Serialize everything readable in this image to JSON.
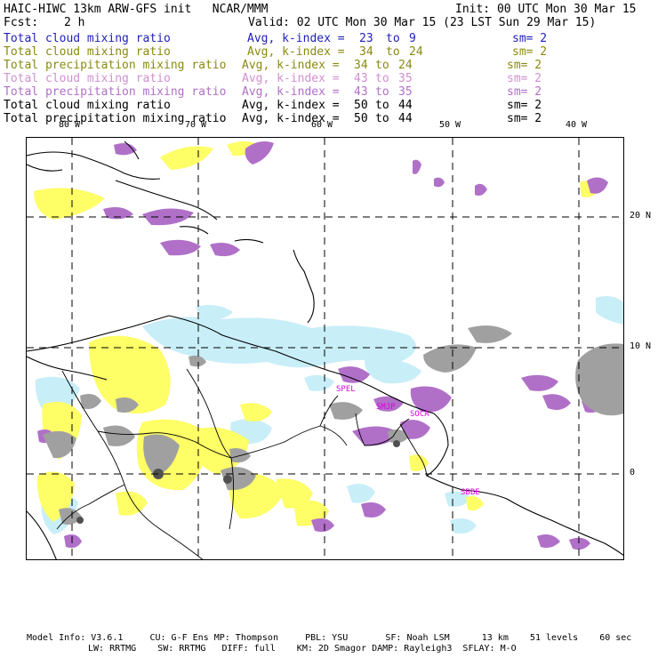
{
  "header": {
    "model_title": "HAIC-HIWC 13km ARW-GFS init   NCAR/MMM",
    "init": "Init: 00 UTC Mon 30 Mar 15",
    "fcst_label": "Fcst:",
    "fcst_value": "2 h",
    "valid": "Valid: 02 UTC Mon 30 Mar 15 (23 LST Sun 29 Mar 15)"
  },
  "fields": [
    {
      "name": "Total cloud mixing ratio",
      "avg": "Avg, k-index =",
      "k_from": "23",
      "to": "to",
      "k_to": "9",
      "sm": "sm= 2",
      "color": "#1f1fb8"
    },
    {
      "name": "Total cloud mixing ratio",
      "avg": "Avg, k-index =",
      "k_from": "34",
      "to": "to",
      "k_to": "24",
      "sm": "sm= 2",
      "color": "#8a8a10"
    },
    {
      "name": "Total precipitation mixing ratio",
      "avg": "Avg, k-index =",
      "k_from": "34",
      "to": "to",
      "k_to": "24",
      "sm": "sm= 2",
      "color": "#8a8a10"
    },
    {
      "name": "Total cloud mixing ratio",
      "avg": "Avg, k-index =",
      "k_from": "43",
      "to": "to",
      "k_to": "35",
      "sm": "sm= 2",
      "color": "#d090d0"
    },
    {
      "name": "Total precipitation mixing ratio",
      "avg": "Avg, k-index =",
      "k_from": "43",
      "to": "to",
      "k_to": "35",
      "sm": "sm= 2",
      "color": "#b070c8"
    },
    {
      "name": "Total cloud mixing ratio",
      "avg": "Avg, k-index =",
      "k_from": "50",
      "to": "to",
      "k_to": "44",
      "sm": "sm= 2",
      "color": "#000000"
    },
    {
      "name": "Total precipitation mixing ratio",
      "avg": "Avg, k-index =",
      "k_from": "50",
      "to": "to",
      "k_to": "44",
      "sm": "sm= 2",
      "color": "#000000"
    }
  ],
  "map": {
    "lon_labels": [
      "80 W",
      "70 W",
      "60 W",
      "50 W",
      "40 W"
    ],
    "lat_labels": [
      "20 N",
      "10 N",
      "0"
    ],
    "stations": [
      "SPEL",
      "SMJP",
      "SOCA",
      "SBBE"
    ],
    "station_color": "#e000e0",
    "colors": {
      "light_blue": "#c8eef8",
      "yellow": "#fefe66",
      "purple": "#b070c8",
      "gray": "#a0a0a0",
      "dark_gray": "#505050"
    }
  },
  "footer": {
    "line1": "Model Info: V3.6.1     CU: G-F Ens MP: Thompson     PBL: YSU       SF: Noah LSM      13 km    51 levels    60 sec",
    "line2": "LW: RRTMG    SW: RRTMG   DIFF: full    KM: 2D Smagor DAMP: Rayleigh3  SFLAY: M-O"
  }
}
